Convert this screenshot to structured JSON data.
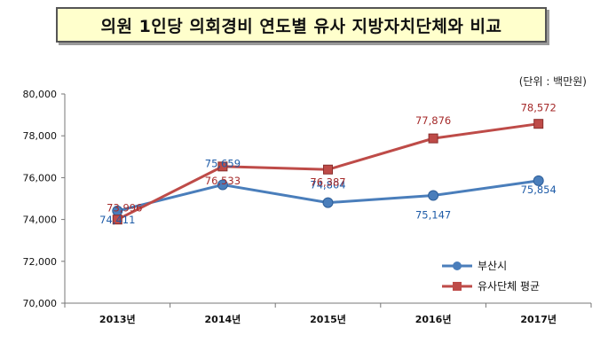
{
  "title": "의원 1인당 의회경비 연도별 유사 지방자치단체와 비교",
  "unit": "(단위 : 백만원)",
  "chart_data": {
    "type": "line",
    "categories": [
      "2013년",
      "2014년",
      "2015년",
      "2016년",
      "2017년"
    ],
    "ylim": [
      70000,
      80000
    ],
    "yticks": [
      "70,000",
      "72,000",
      "74,000",
      "76,000",
      "78,000",
      "80,000"
    ],
    "ytick_values": [
      70000,
      72000,
      74000,
      76000,
      78000,
      80000
    ],
    "grid": false,
    "legend_position": "bottom-right",
    "series": [
      {
        "name": "부산시",
        "values": [
          74411,
          75659,
          74804,
          75147,
          75854
        ],
        "labels": [
          "74,411",
          "75,659",
          "74,804",
          "75,147",
          "75,854"
        ],
        "color": "#4a7ebb",
        "label_color": "#1f5ca8",
        "marker": "circle"
      },
      {
        "name": "유사단체 평균",
        "values": [
          73996,
          76533,
          76387,
          77876,
          78572
        ],
        "labels": [
          "73,996",
          "76,533",
          "76,387",
          "77,876",
          "78,572"
        ],
        "color": "#be4b48",
        "label_color": "#a52a2a",
        "marker": "square"
      }
    ]
  }
}
